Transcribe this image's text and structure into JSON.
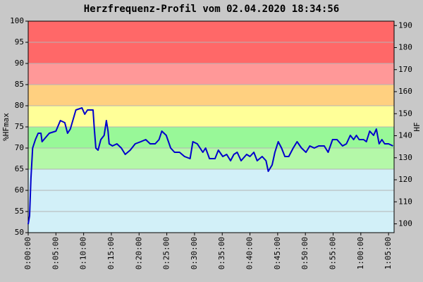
{
  "chart_data": {
    "type": "line",
    "title": "Herzfrequenz-Profil vom 02.04.2020 18:34:56",
    "y_label": "%HFmax",
    "y2_label": "HF",
    "color": "#0000cc",
    "grid": true,
    "x": [
      0,
      0.25,
      0.5,
      0.8,
      1.3,
      1.8,
      2.3,
      2.5,
      3.8,
      5,
      5.8,
      6.6,
      7.1,
      7.6,
      8.6,
      9.7,
      10.2,
      10.7,
      11.7,
      11.9,
      12.2,
      12.6,
      13.1,
      13.7,
      14.1,
      14.4,
      14.6,
      15.2,
      16,
      16.8,
      17.5,
      18.4,
      19.3,
      20.3,
      21.2,
      22,
      22.9,
      23.6,
      24.1,
      24.9,
      25.7,
      26.4,
      27.3,
      28.2,
      29.2,
      29.7,
      30.5,
      31.5,
      32,
      32.7,
      33.7,
      34.3,
      35.1,
      35.8,
      36.5,
      37.1,
      37.7,
      38.4,
      39.4,
      40,
      40.7,
      41.3,
      42.2,
      42.9,
      43.3,
      44,
      44.5,
      45.1,
      45.7,
      46.3,
      47,
      47.8,
      48.5,
      49.3,
      50.1,
      50.8,
      51.6,
      52.4,
      53.4,
      54.1,
      54.9,
      55.7,
      56.7,
      57.4,
      58.1,
      58.7,
      59.2,
      59.7,
      60.5,
      61,
      61.6,
      62.3,
      62.8,
      63.3,
      63.8,
      64.3,
      65,
      65.8
    ],
    "values": [
      52,
      54,
      63,
      70,
      72,
      73.5,
      73.5,
      71.5,
      73.5,
      74,
      76.5,
      76,
      73.5,
      74.5,
      79,
      79.5,
      78,
      79,
      79,
      75,
      70,
      69.5,
      72,
      73,
      76.5,
      74,
      71,
      70.5,
      71,
      70,
      68.5,
      69.5,
      71,
      71.5,
      72,
      71,
      71,
      72,
      74,
      73,
      70,
      69,
      69,
      68,
      67.5,
      71.5,
      71,
      69,
      70,
      67.5,
      67.5,
      69.5,
      68,
      68.5,
      67,
      68.5,
      69,
      67,
      68.5,
      68,
      69,
      67,
      68,
      67,
      64.5,
      66,
      69,
      71.5,
      70,
      68,
      68,
      70,
      71.5,
      70,
      69,
      70.5,
      70,
      70.5,
      70.5,
      69,
      72,
      72,
      70.5,
      71,
      73,
      72,
      73,
      72,
      72,
      71.5,
      74,
      73,
      74.5,
      71,
      72,
      71,
      71,
      70.5
    ],
    "xlim": [
      0,
      66
    ],
    "xticks": [
      {
        "value": 0,
        "label": "0:00:00"
      },
      {
        "value": 5,
        "label": "0:05:00"
      },
      {
        "value": 10,
        "label": "0:10:00"
      },
      {
        "value": 15,
        "label": "0:15:00"
      },
      {
        "value": 20,
        "label": "0:20:00"
      },
      {
        "value": 25,
        "label": "0:25:00"
      },
      {
        "value": 30,
        "label": "0:30:00"
      },
      {
        "value": 35,
        "label": "0:35:00"
      },
      {
        "value": 40,
        "label": "0:40:00"
      },
      {
        "value": 45,
        "label": "0:45:00"
      },
      {
        "value": 50,
        "label": "0:50:00"
      },
      {
        "value": 55,
        "label": "0:55:00"
      },
      {
        "value": 60,
        "label": "1:00:00"
      },
      {
        "value": 65,
        "label": "1:05:00"
      }
    ],
    "ylim": [
      50,
      100
    ],
    "yticks": [
      50,
      55,
      60,
      65,
      70,
      75,
      80,
      85,
      90,
      95,
      100
    ],
    "y2lim": [
      96,
      192
    ],
    "y2ticks": [
      100,
      110,
      120,
      130,
      140,
      150,
      160,
      170,
      180,
      190
    ],
    "zones": [
      {
        "from": 50,
        "to": 65,
        "color": "#d2f0f8"
      },
      {
        "from": 65,
        "to": 70,
        "color": "#b4f8a8"
      },
      {
        "from": 70,
        "to": 75,
        "color": "#98f898"
      },
      {
        "from": 75,
        "to": 80,
        "color": "#ffff98"
      },
      {
        "from": 80,
        "to": 85,
        "color": "#ffd080"
      },
      {
        "from": 85,
        "to": 90,
        "color": "#ff9898"
      },
      {
        "from": 90,
        "to": 100,
        "color": "#ff6868"
      }
    ]
  }
}
